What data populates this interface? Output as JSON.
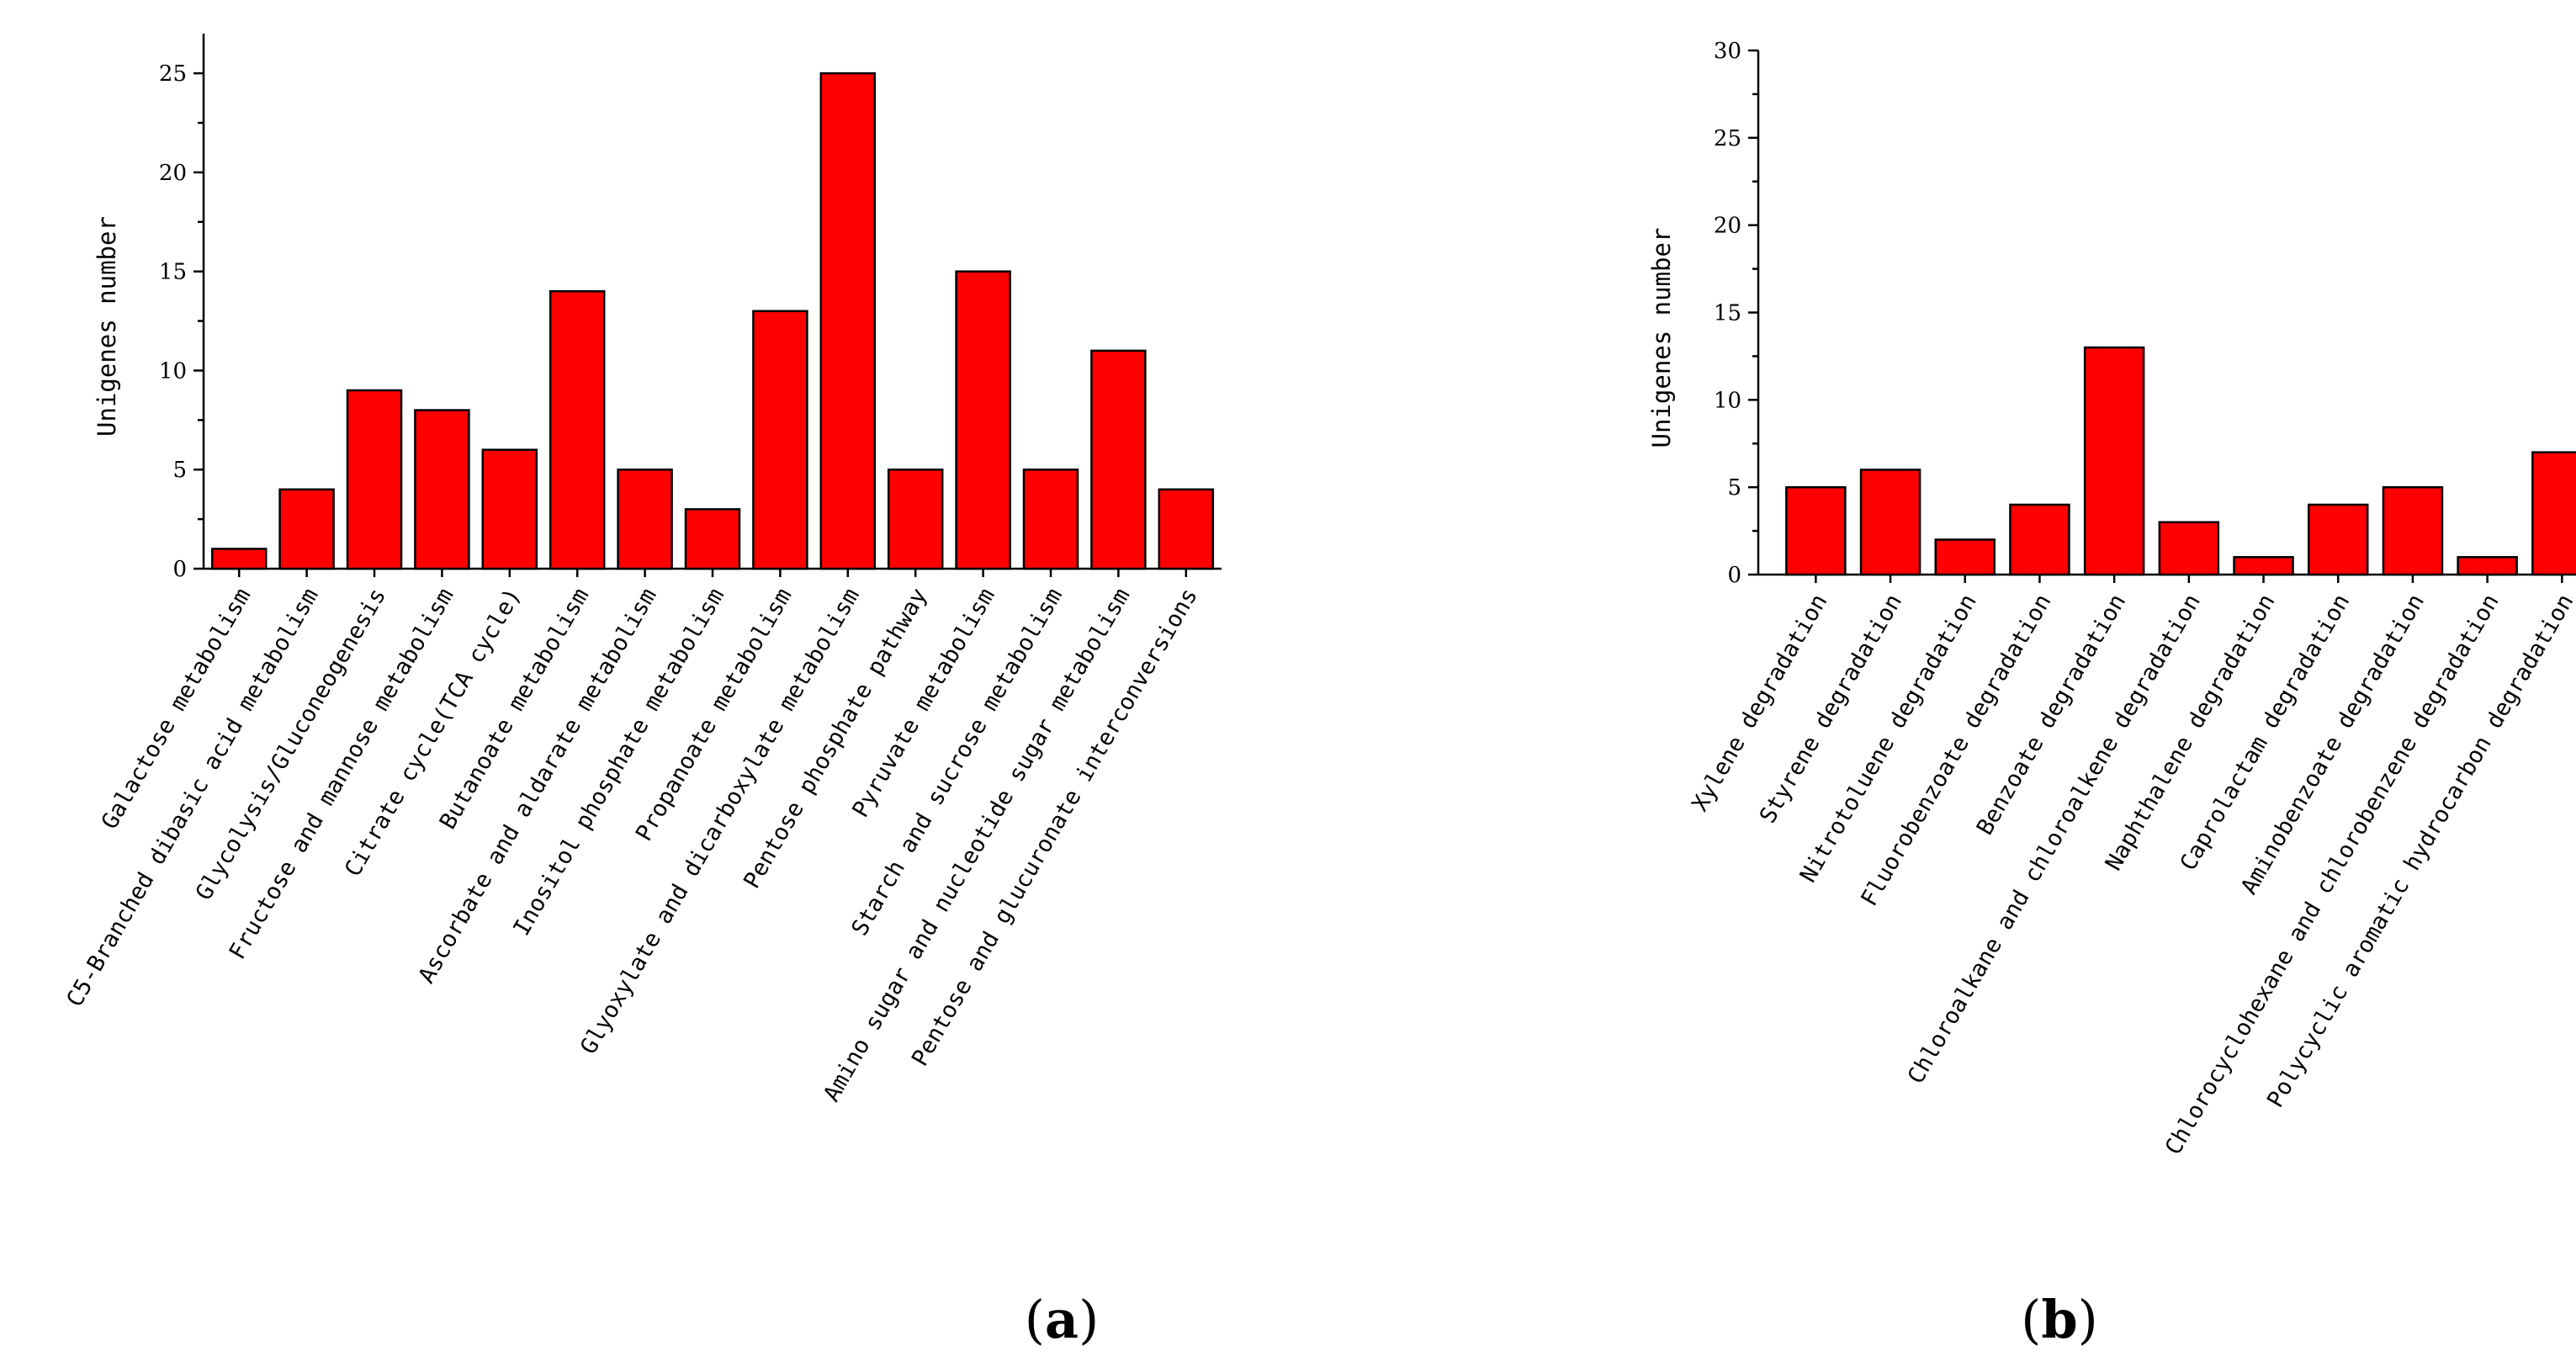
{
  "chart_data": [
    {
      "type": "bar",
      "panel_label": "a",
      "ylabel": "Unigenes number",
      "xlabel": "",
      "ylim": [
        0,
        27
      ],
      "yticks": [
        0,
        5,
        10,
        15,
        20,
        25
      ],
      "bar_color": "#ff0000",
      "categories": [
        "Galactose metabolism",
        "C5-Branched dibasic acid metabolism",
        "Glycolysis/Gluconeogenesis",
        "Fructose and mannose metabolism",
        "Citrate cycle(TCA cycle)",
        "Butanoate metabolism",
        "Ascorbate and aldarate metabolism",
        "Inositol phosphate metabolism",
        "Propanoate metabolism",
        "Glyoxylate and dicarboxylate metabolism",
        "Pentose phosphate pathway",
        "Pyruvate metabolism",
        "Starch and sucrose metabolism",
        "Amino sugar and nucleotide sugar metabolism",
        "Pentose and glucuronate interconversions"
      ],
      "values": [
        1,
        4,
        9,
        8,
        6,
        14,
        5,
        3,
        13,
        25,
        5,
        15,
        5,
        11,
        4
      ]
    },
    {
      "type": "bar",
      "panel_label": "b",
      "ylabel": "Unigenes number",
      "xlabel": "",
      "ylim": [
        0,
        30
      ],
      "yticks": [
        0,
        5,
        10,
        15,
        20,
        25,
        30
      ],
      "bar_color": "#ff0000",
      "categories": [
        "Xylene degradation",
        "Styrene degradation",
        "Nitrotoluene degradation",
        "Fluorobenzoate degradation",
        "Benzoate degradation",
        "Chloroalkane and chloroalkene degradation",
        "Naphthalene degradation",
        "Caprolactam degradation",
        "Aminobenzoate degradation",
        "Chlorocyclohexane and chlorobenzene degradation",
        "Polycyclic aromatic hydrocarbon degradation"
      ],
      "values": [
        5,
        6,
        2,
        4,
        13,
        3,
        1,
        4,
        5,
        1,
        7
      ]
    }
  ]
}
